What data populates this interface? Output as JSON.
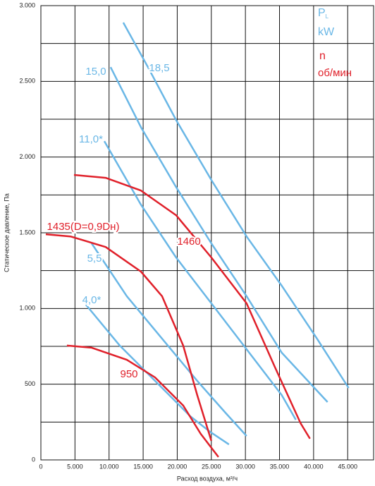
{
  "chart_data": {
    "type": "line",
    "x_label": "Расход воздуха, м³/ч",
    "y_label": "Статическое давление, Па",
    "xlim": [
      0,
      48800
    ],
    "ylim": [
      0,
      3000
    ],
    "xticks": [
      0,
      {
        "value": 5000,
        "label": "5.000"
      },
      {
        "value": 10000,
        "label": "10.000"
      },
      {
        "value": 15000,
        "label": "15.000"
      },
      {
        "value": 20000,
        "label": "20.000"
      },
      {
        "value": 25000,
        "label": "25.000"
      },
      {
        "value": 30000,
        "label": "30.000"
      },
      {
        "value": 35000,
        "label": "35.000"
      },
      {
        "value": 40000,
        "label": "40.000"
      },
      {
        "value": 45000,
        "label": "45.000"
      }
    ],
    "yticks": [
      0,
      500,
      {
        "value": 1000,
        "label": "1.000"
      },
      {
        "value": 1500,
        "label": "1.500"
      },
      {
        "value": 2000,
        "label": "2.000"
      },
      {
        "value": 2500,
        "label": "2.500"
      },
      {
        "value": 3000,
        "label": "3.000"
      }
    ],
    "minor_yticks": [
      250,
      750,
      1250,
      1750,
      2250,
      2750
    ],
    "grid": true,
    "legend": [
      {
        "symbol": "P",
        "subscript": "L",
        "unit": "kW",
        "color": "#6ab7e6"
      },
      {
        "symbol": "n",
        "unit": "об/мин",
        "color": "#e0202a"
      }
    ],
    "series": [
      {
        "name": "18,5",
        "color": "#6ab7e6",
        "x": [
          12087,
          15700,
          19835,
          25000,
          30165,
          35330,
          40500,
          45145
        ],
        "values": [
          2888,
          2594,
          2245,
          1849,
          1476,
          1150,
          801,
          475
        ]
      },
      {
        "name": "15,0",
        "color": "#6ab7e6",
        "x": [
          10230,
          14670,
          19835,
          25000,
          30165,
          35330,
          42045
        ],
        "values": [
          2594,
          2198,
          1802,
          1430,
          1081,
          708,
          382
        ]
      },
      {
        "name": "11,0*",
        "color": "#6ab7e6",
        "x": [
          9300,
          14670,
          19835,
          25000,
          30165,
          35330,
          37400
        ],
        "values": [
          2105,
          1686,
          1337,
          1034,
          731,
          428,
          265
        ]
      },
      {
        "name": "5,5",
        "color": "#6ab7e6",
        "x": [
          7440,
          12600,
          17770,
          22930,
          27060,
          30165
        ],
        "values": [
          1430,
          1081,
          801,
          522,
          312,
          158
        ]
      },
      {
        "name": "4,0*",
        "color": "#6ab7e6",
        "x": [
          6610,
          11570,
          16740,
          21900,
          24800,
          27580
        ],
        "values": [
          1025,
          755,
          522,
          289,
          186,
          102
        ]
      },
      {
        "name": "1460",
        "color": "#e0202a",
        "x": [
          4855,
          9500,
          14670,
          19835,
          25000,
          30165,
          34300,
          38100,
          39460
        ],
        "values": [
          1882,
          1863,
          1779,
          1616,
          1337,
          1034,
          615,
          242,
          140
        ]
      },
      {
        "name": "1435(D=0,9Dн)",
        "color": "#e0202a",
        "x": [
          720,
          4340,
          9500,
          14670,
          17770,
          20870,
          22935,
          25000
        ],
        "values": [
          1490,
          1476,
          1406,
          1244,
          1081,
          755,
          428,
          126
        ]
      },
      {
        "name": "950",
        "color": "#e0202a",
        "x": [
          3820,
          7440,
          12600,
          16740,
          20870,
          23450,
          26040
        ],
        "values": [
          755,
          741,
          661,
          545,
          359,
          172,
          19
        ]
      }
    ]
  }
}
